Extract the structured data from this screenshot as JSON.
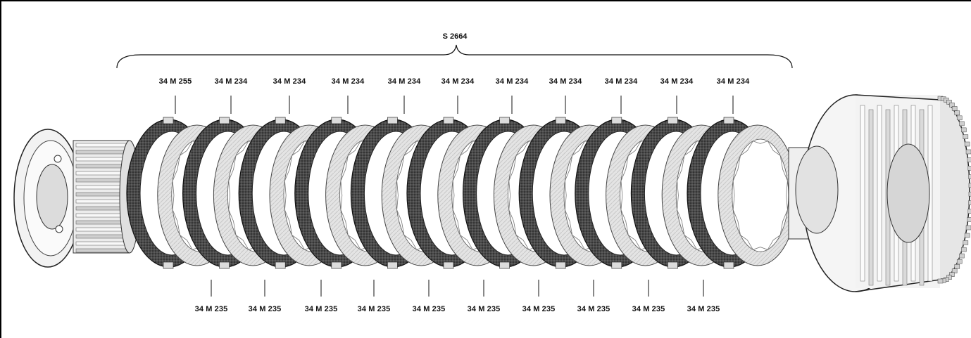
{
  "assembly_label": "S 2664",
  "top_labels": [
    "34 M 255",
    "34 M 234",
    "34 M 234",
    "34 M 234",
    "34 M 234",
    "34 M 234",
    "34 M 234",
    "34 M 234",
    "34 M 234",
    "34 M 234",
    "34 M 234"
  ],
  "bottom_labels": [
    "34 M 235",
    "34 M 235",
    "34 M 235",
    "34 M 235",
    "34 M 235",
    "34 M 235",
    "34 M 235",
    "34 M 235",
    "34 M 235",
    "34 M 235"
  ],
  "colors": {
    "ink": "#111111",
    "friction": "#3a3a3a",
    "steel": "#d9d9d9"
  }
}
